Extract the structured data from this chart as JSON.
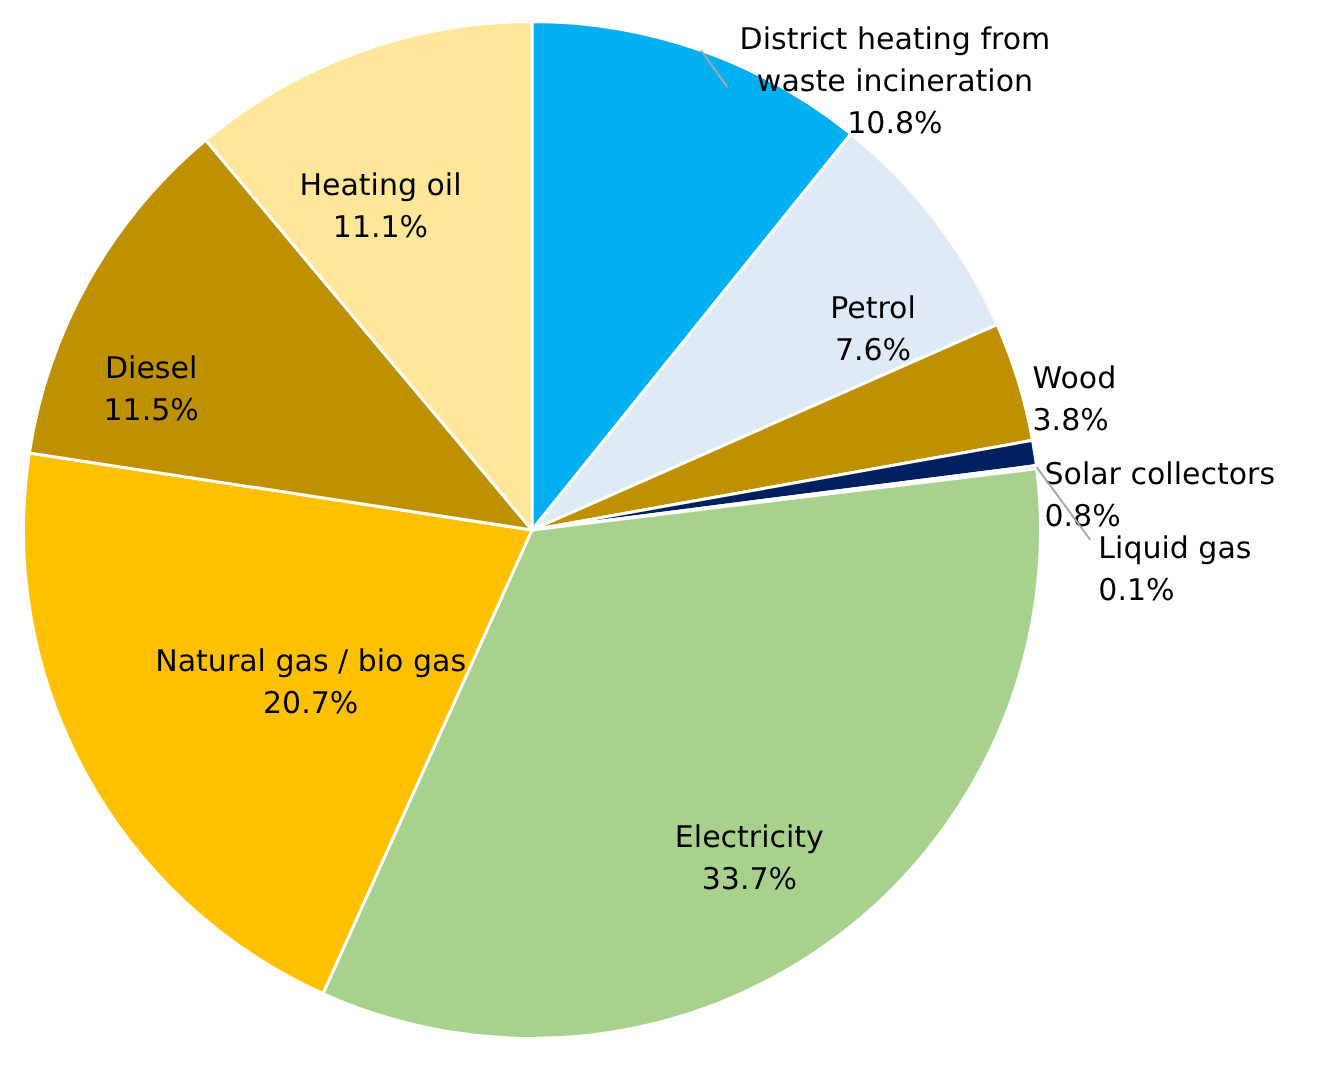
{
  "chart_data": {
    "type": "pie",
    "categories": [
      "District heating from waste incineration",
      "Petrol",
      "Wood",
      "Solar collectors",
      "Liquid gas",
      "Electricity",
      "Natural gas / bio gas",
      "Diesel",
      "Heating oil"
    ],
    "values": [
      10.8,
      7.6,
      3.8,
      0.8,
      0.1,
      33.7,
      20.7,
      11.5,
      11.1
    ],
    "colors": [
      "#00b0f0",
      "#deebf7",
      "#bf9000",
      "#002060",
      "#ff0000",
      "#a9d18e",
      "#ffc000",
      "#bf9000",
      "#ffe699"
    ],
    "value_labels": [
      "10.8%",
      "7.6%",
      "3.8%",
      "0.8%",
      "0.1%",
      "33.7%",
      "20.7%",
      "11.5%",
      "11.1%"
    ],
    "legend": false
  }
}
